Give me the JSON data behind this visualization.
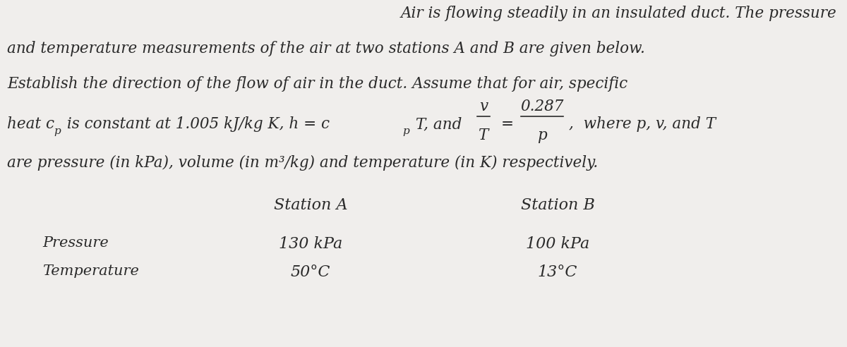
{
  "bg_color": "#f0eeec",
  "text_color": "#2a2a2a",
  "figsize": [
    12.0,
    4.92
  ],
  "dpi": 100,
  "line1": "Air is flowing steadily in an insulated duct. The pressure",
  "line2": "and temperature measurements of the air at two stations A and B are given below.",
  "line3": "Establish the direction of the flow of air in the duct. Assume that for air, specific",
  "line5": "are pressure (in kPa), volume (in m³/kg) and temperature (in K) respectively.",
  "col_header_A": "Station A",
  "col_header_B": "Station B",
  "row1_label": "Pressure",
  "row2_label": "Temperature",
  "row1_A": "130 kPa",
  "row2_A": "50°C",
  "row1_B": "100 kPa",
  "row2_B": "13°C",
  "body_fontsize": 15.5,
  "sub_fontsize": 11,
  "table_header_fontsize": 16,
  "table_data_fontsize": 16,
  "table_label_fontsize": 15
}
